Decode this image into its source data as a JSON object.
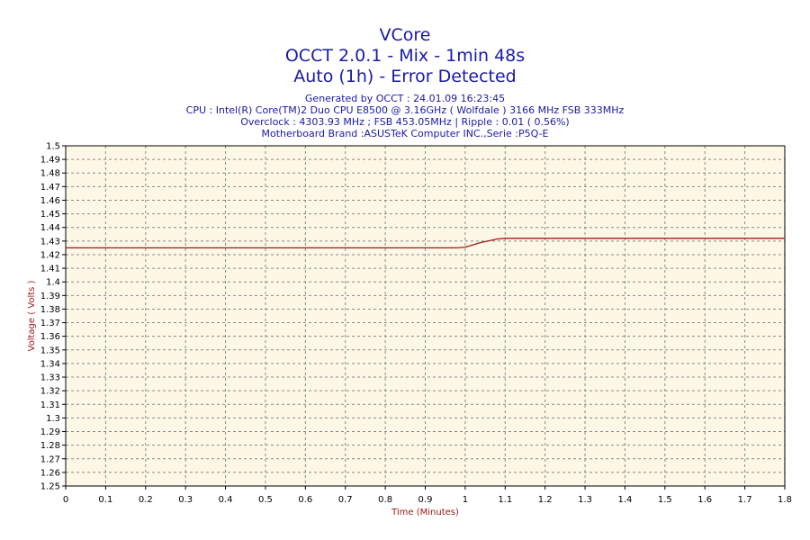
{
  "header": {
    "title_lines": [
      "VCore",
      "OCCT 2.0.1 - Mix - 1min 48s",
      "Auto (1h) - Error Detected"
    ],
    "info_lines": [
      "Generated by OCCT : 24.01.09 16:23:45",
      "CPU : Intel(R) Core(TM)2 Duo CPU E8500 @ 3.16GHz ( Wolfdale ) 3166 MHz FSB 333MHz",
      "Overclock : 4303.93 MHz ; FSB 453.05MHz | Ripple : 0.01 ( 0.56%)",
      "Motherboard Brand :ASUSTeK Computer INC.,Serie :P5Q-E"
    ]
  },
  "colors": {
    "title": "#1a1aa6",
    "plot_background": "#fdf8e6",
    "series": "#a01818",
    "grid": "#888888",
    "axis_label": "#a01818"
  },
  "chart_data": {
    "type": "line",
    "title": "VCore",
    "xlabel": "Time (Minutes)",
    "ylabel": "Voltage ( Volts )",
    "xlim": [
      0,
      1.8
    ],
    "ylim": [
      1.25,
      1.5
    ],
    "x_ticks": [
      "0",
      "0.1",
      "0.2",
      "0.3",
      "0.4",
      "0.5",
      "0.6",
      "0.7",
      "0.8",
      "0.9",
      "1",
      "1.1",
      "1.2",
      "1.3",
      "1.4",
      "1.5",
      "1.6",
      "1.7",
      "1.8"
    ],
    "y_ticks": [
      "1.5",
      "1.49",
      "1.48",
      "1.47",
      "1.46",
      "1.45",
      "1.44",
      "1.43",
      "1.42",
      "1.41",
      "1.4",
      "1.39",
      "1.38",
      "1.37",
      "1.36",
      "1.35",
      "1.34",
      "1.33",
      "1.32",
      "1.31",
      "1.3",
      "1.29",
      "1.28",
      "1.27",
      "1.26",
      "1.25"
    ],
    "grid": true,
    "series": [
      {
        "x": [
          0,
          0.98,
          1.0,
          1.04,
          1.08,
          1.1,
          1.8
        ],
        "y": [
          1.425,
          1.425,
          1.4255,
          1.429,
          1.4315,
          1.432,
          1.432
        ]
      }
    ]
  }
}
